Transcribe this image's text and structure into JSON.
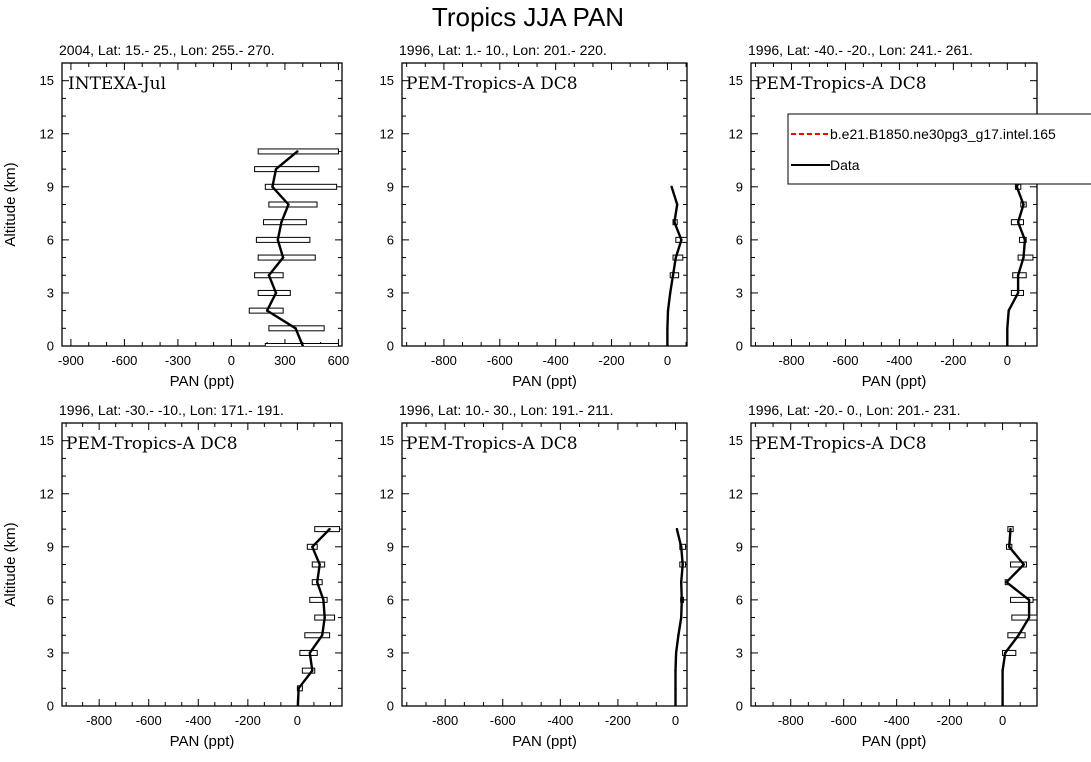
{
  "figure": {
    "title": "Tropics JJA PAN"
  },
  "chart_data": [
    {
      "type": "line",
      "subtitle": "2004, Lat: 15.- 25., Lon: 255.- 270.",
      "campaign": "INTEXA-Jul",
      "xlabel": "PAN (ppt)",
      "ylabel": "Altitude (km)",
      "xlim": [
        -950,
        620
      ],
      "ylim": [
        0,
        16
      ],
      "xticks": [
        -900,
        -600,
        -300,
        0,
        300,
        600
      ],
      "yticks": [
        0,
        3,
        6,
        9,
        12,
        15
      ],
      "series": [
        {
          "name": "Data",
          "color": "#000000",
          "points": [
            {
              "alt": 0,
              "val": 400,
              "lo": 190,
              "hi": 600
            },
            {
              "alt": 1,
              "val": 360,
              "lo": 210,
              "hi": 520
            },
            {
              "alt": 2,
              "val": 200,
              "lo": 100,
              "hi": 290
            },
            {
              "alt": 3,
              "val": 250,
              "lo": 150,
              "hi": 330
            },
            {
              "alt": 4,
              "val": 210,
              "lo": 130,
              "hi": 290
            },
            {
              "alt": 5,
              "val": 290,
              "lo": 150,
              "hi": 470
            },
            {
              "alt": 6,
              "val": 260,
              "lo": 140,
              "hi": 440
            },
            {
              "alt": 7,
              "val": 280,
              "lo": 180,
              "hi": 420
            },
            {
              "alt": 8,
              "val": 320,
              "lo": 210,
              "hi": 480
            },
            {
              "alt": 9,
              "val": 230,
              "lo": 190,
              "hi": 590
            },
            {
              "alt": 10,
              "val": 250,
              "lo": 130,
              "hi": 490
            },
            {
              "alt": 11,
              "val": 370,
              "lo": 150,
              "hi": 600
            }
          ]
        }
      ]
    },
    {
      "type": "line",
      "subtitle": "1996, Lat: 1.- 10., Lon: 201.- 220.",
      "campaign": "PEM-Tropics-A DC8",
      "xlabel": "PAN (ppt)",
      "ylabel": "",
      "xlim": [
        -950,
        70
      ],
      "ylim": [
        0,
        16
      ],
      "xticks": [
        -800,
        -600,
        -400,
        -200,
        0
      ],
      "yticks": [
        0,
        3,
        6,
        9,
        12,
        15
      ],
      "series": [
        {
          "name": "Data",
          "color": "#000000",
          "points": [
            {
              "alt": 0,
              "val": 0
            },
            {
              "alt": 1,
              "val": 0
            },
            {
              "alt": 2,
              "val": 2
            },
            {
              "alt": 3,
              "val": 10
            },
            {
              "alt": 4,
              "val": 20,
              "lo": 10,
              "hi": 40
            },
            {
              "alt": 5,
              "val": 30,
              "lo": 20,
              "hi": 55
            },
            {
              "alt": 6,
              "val": 50,
              "lo": 30,
              "hi": 70
            },
            {
              "alt": 7,
              "val": 25,
              "lo": 20,
              "hi": 35
            },
            {
              "alt": 8,
              "val": 35
            },
            {
              "alt": 9,
              "val": 15
            }
          ]
        }
      ]
    },
    {
      "type": "line",
      "subtitle": "1996, Lat: -40.- -20., Lon: 241.- 261.",
      "campaign": "PEM-Tropics-A DC8",
      "xlabel": "PAN (ppt)",
      "ylabel": "",
      "xlim": [
        -950,
        110
      ],
      "ylim": [
        0,
        16
      ],
      "xticks": [
        -800,
        -600,
        -400,
        -200,
        0
      ],
      "yticks": [
        0,
        3,
        6,
        9,
        12,
        15
      ],
      "legend": {
        "entries": [
          {
            "label": "b.e21.B1850.ne30pg3_g17.intel.165",
            "color": "#ff0000",
            "dash": true
          },
          {
            "label": "Data",
            "color": "#000000",
            "dash": false
          }
        ]
      },
      "series": [
        {
          "name": "Data",
          "color": "#000000",
          "points": [
            {
              "alt": 0,
              "val": 0
            },
            {
              "alt": 1,
              "val": 0
            },
            {
              "alt": 2,
              "val": 5
            },
            {
              "alt": 3,
              "val": 40,
              "lo": 15,
              "hi": 60
            },
            {
              "alt": 4,
              "val": 40,
              "lo": 20,
              "hi": 70
            },
            {
              "alt": 5,
              "val": 60,
              "lo": 40,
              "hi": 95
            },
            {
              "alt": 6,
              "val": 65,
              "lo": 45,
              "hi": 70
            },
            {
              "alt": 7,
              "val": 40,
              "lo": 15,
              "hi": 60
            },
            {
              "alt": 8,
              "val": 60,
              "lo": 50,
              "hi": 70
            },
            {
              "alt": 9,
              "val": 35,
              "lo": 30,
              "hi": 50
            },
            {
              "alt": 10,
              "val": 60,
              "lo": 55,
              "hi": 65
            }
          ]
        }
      ]
    },
    {
      "type": "line",
      "subtitle": "1996, Lat: -30.- -10., Lon: 171.- 191.",
      "campaign": "PEM-Tropics-A DC8",
      "xlabel": "PAN (ppt)",
      "ylabel": "Altitude (km)",
      "xlim": [
        -950,
        180
      ],
      "ylim": [
        0,
        16
      ],
      "xticks": [
        -800,
        -600,
        -400,
        -200,
        0
      ],
      "yticks": [
        0,
        3,
        6,
        9,
        12,
        15
      ],
      "series": [
        {
          "name": "Data",
          "color": "#000000",
          "points": [
            {
              "alt": 0,
              "val": 2
            },
            {
              "alt": 1,
              "val": 5,
              "lo": 0,
              "hi": 20
            },
            {
              "alt": 2,
              "val": 60,
              "lo": 20,
              "hi": 70
            },
            {
              "alt": 3,
              "val": 50,
              "lo": 10,
              "hi": 80
            },
            {
              "alt": 4,
              "val": 100,
              "lo": 30,
              "hi": 130
            },
            {
              "alt": 5,
              "val": 110,
              "lo": 70,
              "hi": 150
            },
            {
              "alt": 6,
              "val": 105,
              "lo": 50,
              "hi": 120
            },
            {
              "alt": 7,
              "val": 80,
              "lo": 60,
              "hi": 100
            },
            {
              "alt": 8,
              "val": 90,
              "lo": 60,
              "hi": 110
            },
            {
              "alt": 9,
              "val": 60,
              "lo": 40,
              "hi": 80
            },
            {
              "alt": 10,
              "val": 130,
              "lo": 70,
              "hi": 170
            }
          ]
        }
      ]
    },
    {
      "type": "line",
      "subtitle": "1996, Lat: 10.- 30., Lon: 191.- 211.",
      "campaign": "PEM-Tropics-A DC8",
      "xlabel": "PAN (ppt)",
      "ylabel": "",
      "xlim": [
        -950,
        40
      ],
      "ylim": [
        0,
        16
      ],
      "xticks": [
        -800,
        -600,
        -400,
        -200,
        0
      ],
      "yticks": [
        0,
        3,
        6,
        9,
        12,
        15
      ],
      "series": [
        {
          "name": "Data",
          "color": "#000000",
          "points": [
            {
              "alt": 0,
              "val": 0
            },
            {
              "alt": 1,
              "val": 0
            },
            {
              "alt": 2,
              "val": 0
            },
            {
              "alt": 3,
              "val": 2
            },
            {
              "alt": 4,
              "val": 10
            },
            {
              "alt": 5,
              "val": 20
            },
            {
              "alt": 6,
              "val": 22,
              "lo": 18,
              "hi": 28
            },
            {
              "alt": 7,
              "val": 20
            },
            {
              "alt": 8,
              "val": 25,
              "lo": 15,
              "hi": 35
            },
            {
              "alt": 9,
              "val": 20,
              "lo": 15,
              "hi": 35
            },
            {
              "alt": 10,
              "val": 5
            }
          ]
        }
      ]
    },
    {
      "type": "line",
      "subtitle": "1996, Lat: -20.- 0., Lon: 201.- 231.",
      "campaign": "PEM-Tropics-A DC8",
      "xlabel": "PAN (ppt)",
      "ylabel": "",
      "xlim": [
        -950,
        130
      ],
      "ylim": [
        0,
        16
      ],
      "xticks": [
        -800,
        -600,
        -400,
        -200,
        0
      ],
      "yticks": [
        0,
        3,
        6,
        9,
        12,
        15
      ],
      "series": [
        {
          "name": "Data",
          "color": "#000000",
          "points": [
            {
              "alt": 0,
              "val": 0
            },
            {
              "alt": 1,
              "val": 0
            },
            {
              "alt": 2,
              "val": 0
            },
            {
              "alt": 3,
              "val": 10,
              "lo": 0,
              "hi": 50
            },
            {
              "alt": 4,
              "val": 60,
              "lo": 20,
              "hi": 85
            },
            {
              "alt": 5,
              "val": 100,
              "lo": 35,
              "hi": 130
            },
            {
              "alt": 6,
              "val": 100,
              "lo": 30,
              "hi": 115
            },
            {
              "alt": 7,
              "val": 15,
              "lo": 10,
              "hi": 20
            },
            {
              "alt": 8,
              "val": 80,
              "lo": 30,
              "hi": 90
            },
            {
              "alt": 9,
              "val": 25,
              "lo": 15,
              "hi": 35
            },
            {
              "alt": 10,
              "val": 30,
              "lo": 20,
              "hi": 40
            }
          ]
        }
      ]
    }
  ]
}
